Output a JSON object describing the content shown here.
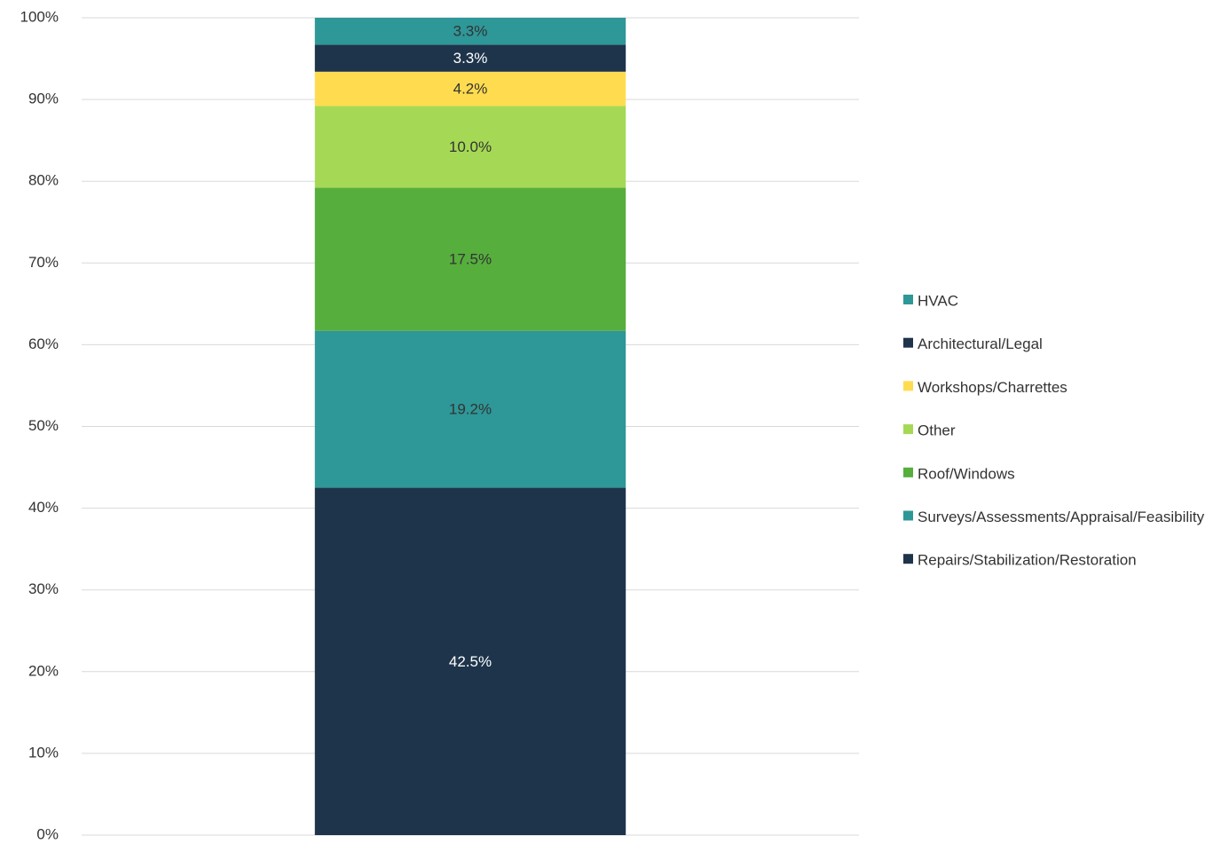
{
  "chart_data": {
    "type": "stacked_bar",
    "categories": [
      null
    ],
    "series": [
      {
        "name": "Repairs/Stabilization/Restoration",
        "color": "#1e344b",
        "values": [
          42.5
        ],
        "value_labels": [
          "42.5%"
        ]
      },
      {
        "name": "Surveys/Assessments/Appraisal/Feasibility",
        "color": "#2e9797",
        "values": [
          19.2
        ],
        "value_labels": [
          "19.2%"
        ]
      },
      {
        "name": "Roof/Windows",
        "color": "#56ae3d",
        "values": [
          17.5
        ],
        "value_labels": [
          "17.5%"
        ]
      },
      {
        "name": "Other",
        "color": "#a5d955",
        "values": [
          10.0
        ],
        "value_labels": [
          "10.0%"
        ]
      },
      {
        "name": "Workshops/Charrettes",
        "color": "#ffdc4f",
        "values": [
          4.2
        ],
        "value_labels": [
          "4.2%"
        ]
      },
      {
        "name": "Architectural/Legal",
        "color": "#1e344b",
        "values": [
          3.3
        ],
        "value_labels": [
          "3.3%"
        ]
      },
      {
        "name": "HVAC",
        "color": "#2e9797",
        "values": [
          3.3
        ],
        "value_labels": [
          "3.3%"
        ]
      }
    ],
    "ylim": [
      0,
      100
    ],
    "yticks": [
      {
        "value": 0,
        "label": "0%"
      },
      {
        "value": 10,
        "label": "10%"
      },
      {
        "value": 20,
        "label": "20%"
      },
      {
        "value": 30,
        "label": "30%"
      },
      {
        "value": 40,
        "label": "40%"
      },
      {
        "value": 50,
        "label": "50%"
      },
      {
        "value": 60,
        "label": "60%"
      },
      {
        "value": 70,
        "label": "70%"
      },
      {
        "value": 80,
        "label": "80%"
      },
      {
        "value": 90,
        "label": "90%"
      },
      {
        "value": 100,
        "label": "100%"
      }
    ],
    "grid": true,
    "legend": "right"
  }
}
